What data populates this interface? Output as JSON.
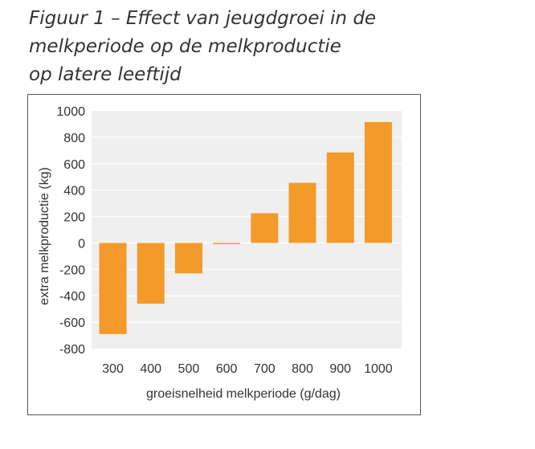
{
  "figure": {
    "title_lines": [
      "Figuur 1 – Effect van jeugdgroei in de",
      "melkperiode op de melkproductie",
      "op latere leeftijd"
    ]
  },
  "chart_data": {
    "type": "bar",
    "title": "Figuur 1 – Effect van jeugdgroei in de melkperiode op de melkproductie op latere leeftijd",
    "xlabel": "groeisnelheid melkperiode (g/dag)",
    "ylabel": "extra melkproductie (kg)",
    "categories": [
      "300",
      "400",
      "500",
      "600",
      "700",
      "800",
      "900",
      "1000"
    ],
    "values": [
      -690,
      -460,
      -230,
      -5,
      225,
      455,
      685,
      915
    ],
    "ylim": [
      -800,
      1000
    ],
    "yticks": [
      1000,
      800,
      600,
      400,
      200,
      0,
      -200,
      -400,
      -600,
      -800
    ],
    "grid": true,
    "bar_color": "#F39A2A",
    "plot_background": "#EFEFEF",
    "grid_color": "#FFFFFF"
  }
}
